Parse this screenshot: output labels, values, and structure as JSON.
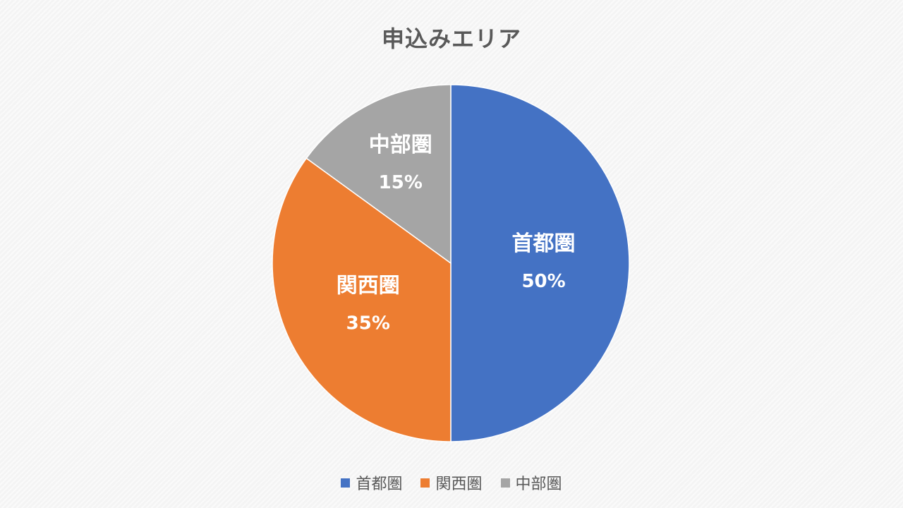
{
  "chart_data": {
    "type": "pie",
    "title": "申込みエリア",
    "categories": [
      "首都圏",
      "関西圏",
      "中部圏"
    ],
    "values": [
      50,
      35,
      15
    ],
    "value_labels": [
      "50%",
      "35%",
      "15%"
    ],
    "colors": [
      "#4472C4",
      "#ED7D31",
      "#A5A5A5"
    ],
    "start_angle_deg": 0,
    "direction": "clockwise",
    "legend_position": "bottom",
    "data_labels": "inside"
  }
}
